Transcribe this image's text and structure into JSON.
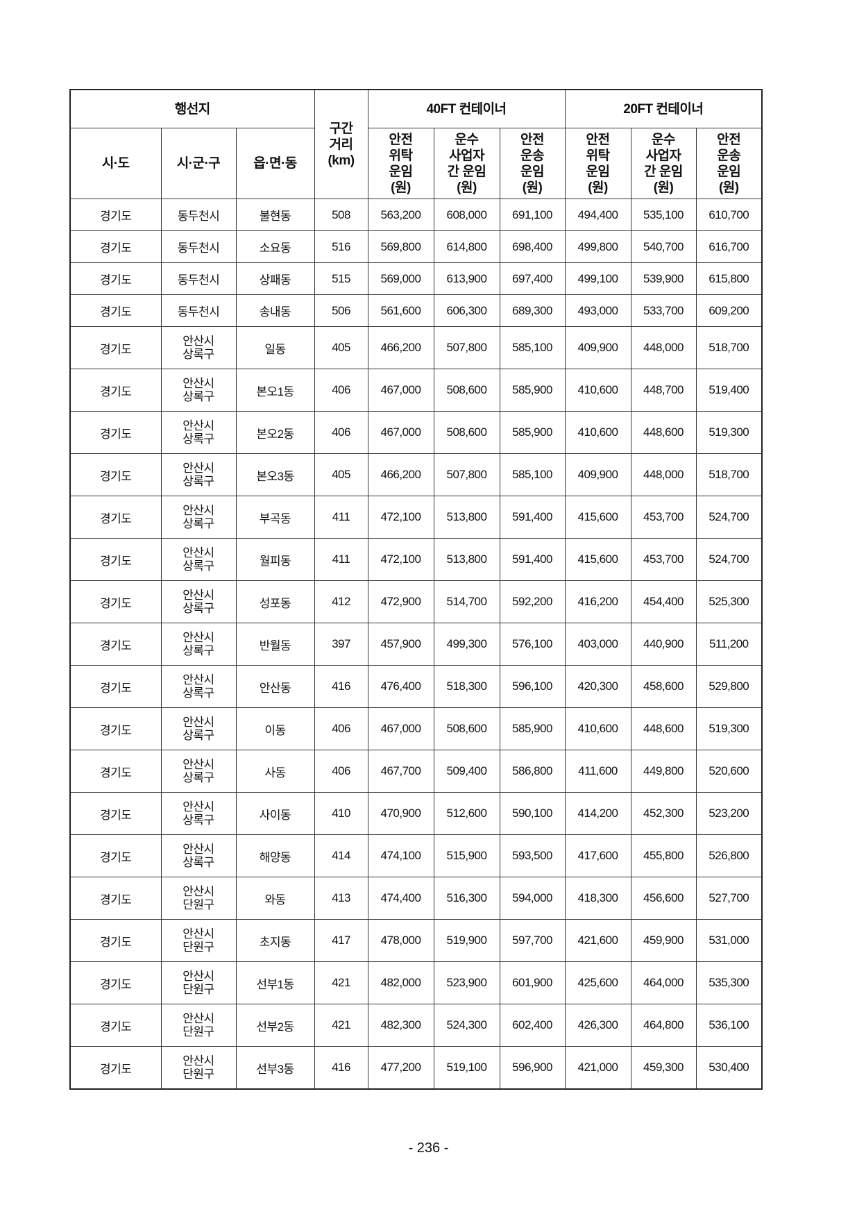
{
  "header": {
    "destination": "행선지",
    "distance": "구간\n거리\n(km)",
    "group40": "40FT 컨테이너",
    "group20": "20FT 컨테이너",
    "sido": "시·도",
    "sigungu": "시·군·구",
    "eupmyeondong": "읍·면·동",
    "rate_cols": [
      "안전\n위탁\n운임\n(원)",
      "운수\n사업자\n간 운임\n(원)",
      "안전\n운송\n운임\n(원)",
      "안전\n위탁\n운임\n(원)",
      "운수\n사업자\n간 운임\n(원)",
      "안전\n운송\n운임\n(원)"
    ]
  },
  "rows": [
    [
      "경기도",
      "동두천시",
      "불현동",
      "508",
      "563,200",
      "608,000",
      "691,100",
      "494,400",
      "535,100",
      "610,700"
    ],
    [
      "경기도",
      "동두천시",
      "소요동",
      "516",
      "569,800",
      "614,800",
      "698,400",
      "499,800",
      "540,700",
      "616,700"
    ],
    [
      "경기도",
      "동두천시",
      "상패동",
      "515",
      "569,000",
      "613,900",
      "697,400",
      "499,100",
      "539,900",
      "615,800"
    ],
    [
      "경기도",
      "동두천시",
      "송내동",
      "506",
      "561,600",
      "606,300",
      "689,300",
      "493,000",
      "533,700",
      "609,200"
    ],
    [
      "경기도",
      "안산시\n상록구",
      "일동",
      "405",
      "466,200",
      "507,800",
      "585,100",
      "409,900",
      "448,000",
      "518,700"
    ],
    [
      "경기도",
      "안산시\n상록구",
      "본오1동",
      "406",
      "467,000",
      "508,600",
      "585,900",
      "410,600",
      "448,700",
      "519,400"
    ],
    [
      "경기도",
      "안산시\n상록구",
      "본오2동",
      "406",
      "467,000",
      "508,600",
      "585,900",
      "410,600",
      "448,600",
      "519,300"
    ],
    [
      "경기도",
      "안산시\n상록구",
      "본오3동",
      "405",
      "466,200",
      "507,800",
      "585,100",
      "409,900",
      "448,000",
      "518,700"
    ],
    [
      "경기도",
      "안산시\n상록구",
      "부곡동",
      "411",
      "472,100",
      "513,800",
      "591,400",
      "415,600",
      "453,700",
      "524,700"
    ],
    [
      "경기도",
      "안산시\n상록구",
      "월피동",
      "411",
      "472,100",
      "513,800",
      "591,400",
      "415,600",
      "453,700",
      "524,700"
    ],
    [
      "경기도",
      "안산시\n상록구",
      "성포동",
      "412",
      "472,900",
      "514,700",
      "592,200",
      "416,200",
      "454,400",
      "525,300"
    ],
    [
      "경기도",
      "안산시\n상록구",
      "반월동",
      "397",
      "457,900",
      "499,300",
      "576,100",
      "403,000",
      "440,900",
      "511,200"
    ],
    [
      "경기도",
      "안산시\n상록구",
      "안산동",
      "416",
      "476,400",
      "518,300",
      "596,100",
      "420,300",
      "458,600",
      "529,800"
    ],
    [
      "경기도",
      "안산시\n상록구",
      "이동",
      "406",
      "467,000",
      "508,600",
      "585,900",
      "410,600",
      "448,600",
      "519,300"
    ],
    [
      "경기도",
      "안산시\n상록구",
      "사동",
      "406",
      "467,700",
      "509,400",
      "586,800",
      "411,600",
      "449,800",
      "520,600"
    ],
    [
      "경기도",
      "안산시\n상록구",
      "사이동",
      "410",
      "470,900",
      "512,600",
      "590,100",
      "414,200",
      "452,300",
      "523,200"
    ],
    [
      "경기도",
      "안산시\n상록구",
      "해양동",
      "414",
      "474,100",
      "515,900",
      "593,500",
      "417,600",
      "455,800",
      "526,800"
    ],
    [
      "경기도",
      "안산시\n단원구",
      "와동",
      "413",
      "474,400",
      "516,300",
      "594,000",
      "418,300",
      "456,600",
      "527,700"
    ],
    [
      "경기도",
      "안산시\n단원구",
      "초지동",
      "417",
      "478,000",
      "519,900",
      "597,700",
      "421,600",
      "459,900",
      "531,000"
    ],
    [
      "경기도",
      "안산시\n단원구",
      "선부1동",
      "421",
      "482,000",
      "523,900",
      "601,900",
      "425,600",
      "464,000",
      "535,300"
    ],
    [
      "경기도",
      "안산시\n단원구",
      "선부2동",
      "421",
      "482,300",
      "524,300",
      "602,400",
      "426,300",
      "464,800",
      "536,100"
    ],
    [
      "경기도",
      "안산시\n단원구",
      "선부3동",
      "416",
      "477,200",
      "519,100",
      "596,900",
      "421,000",
      "459,300",
      "530,400"
    ]
  ],
  "page_number": "- 236 -"
}
